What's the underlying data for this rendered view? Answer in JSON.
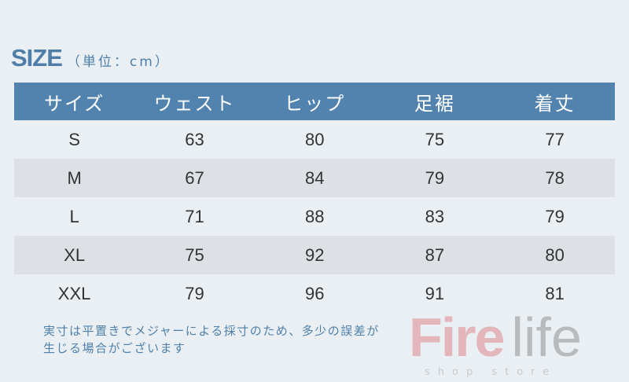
{
  "title": {
    "size": "SIZE",
    "unit": "（単位：cm）"
  },
  "table": {
    "headers": [
      "サイズ",
      "ウェスト",
      "ヒップ",
      "足裾",
      "着丈"
    ],
    "rows": [
      [
        "S",
        "63",
        "80",
        "75",
        "77"
      ],
      [
        "M",
        "67",
        "84",
        "79",
        "78"
      ],
      [
        "L",
        "71",
        "88",
        "83",
        "79"
      ],
      [
        "XL",
        "75",
        "92",
        "87",
        "80"
      ],
      [
        "XXL",
        "79",
        "96",
        "91",
        "81"
      ]
    ]
  },
  "note": "実寸は平置きでメジャーによる採寸のため、多少の誤差が生じる場合がございます",
  "watermark": {
    "fire": "Fire",
    "life": "life",
    "sub": "shop store"
  },
  "colors": {
    "header": "#5283ae",
    "accent": "#4f7ea8",
    "stripe": "#dde1e6"
  }
}
